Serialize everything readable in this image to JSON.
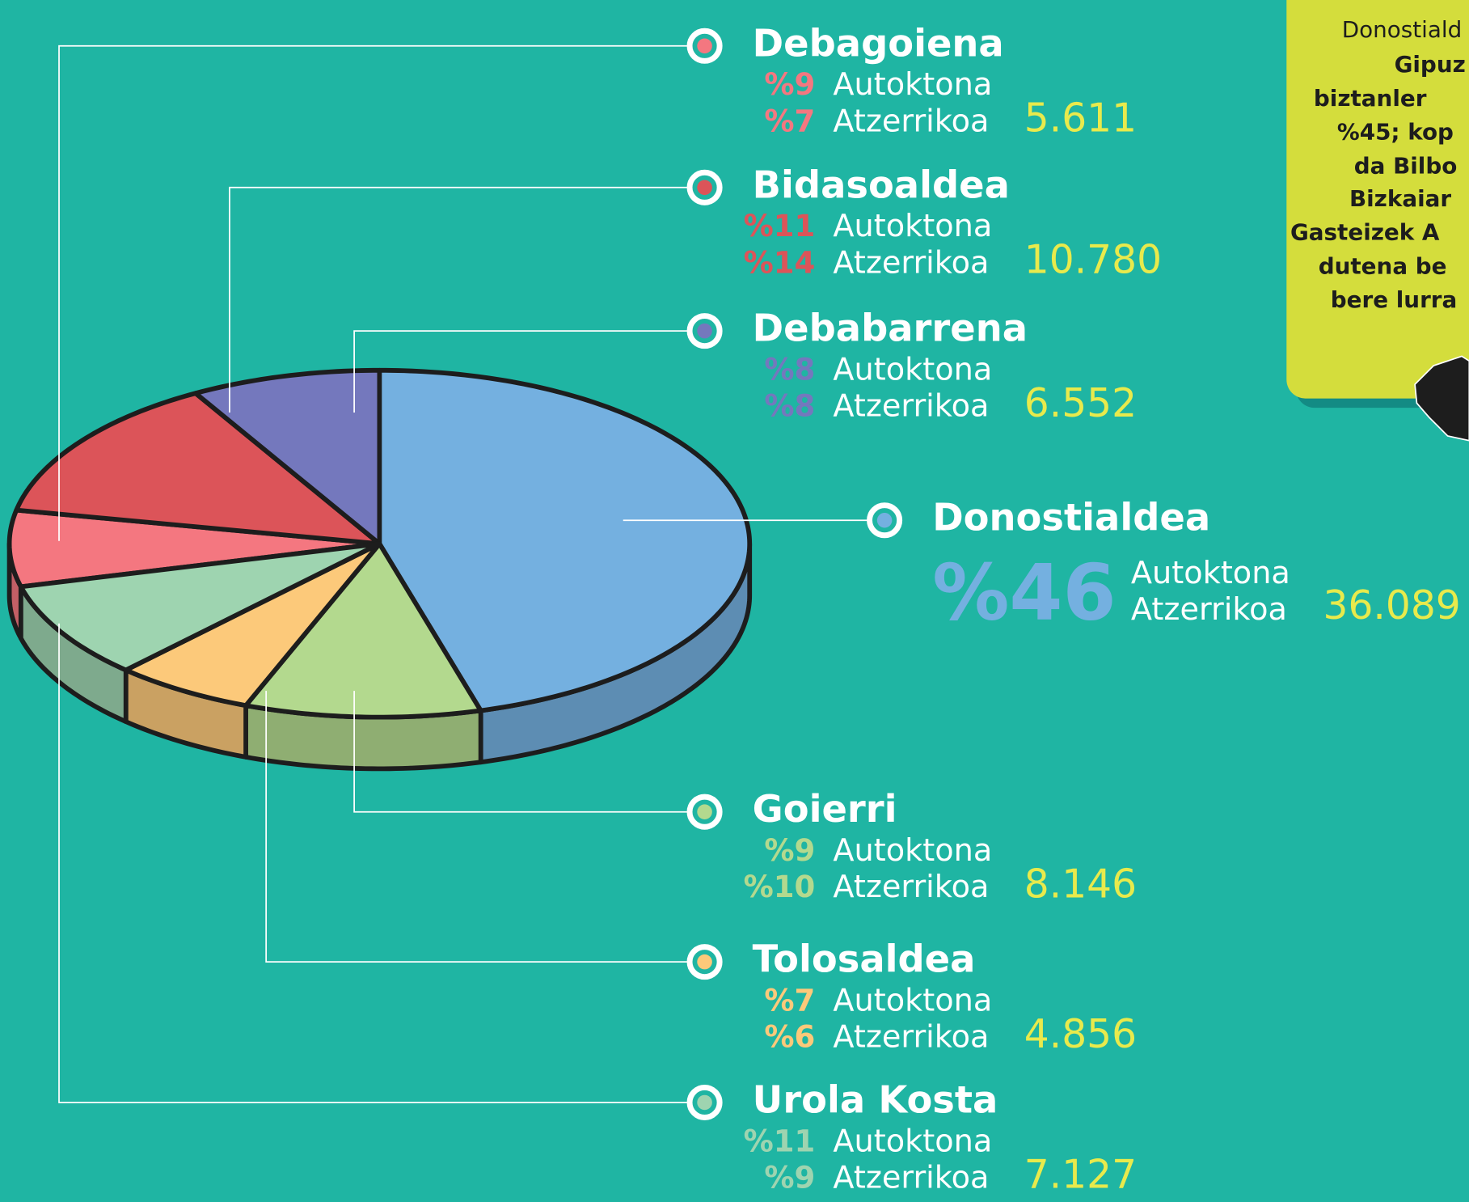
{
  "chart_data": {
    "type": "pie",
    "categories": [
      "Debagoiena",
      "Bidasoaldea",
      "Debabarrena",
      "Donostialdea",
      "Goierri",
      "Tolosaldea",
      "Urola Kosta"
    ],
    "values": [
      5611,
      10780,
      6552,
      36089,
      8146,
      4856,
      7127
    ],
    "value_labels": [
      "5.611",
      "10.780",
      "6.552",
      "36.089",
      "8.146",
      "4.856",
      "7.127"
    ],
    "colors": [
      "#f47780",
      "#dc5459",
      "#7478bd",
      "#74b0e0",
      "#b3d98e",
      "#fcc97a",
      "#9ed4b0"
    ],
    "autoktona": {
      "name": "Autoktona",
      "values": [
        9,
        11,
        8,
        46,
        9,
        7,
        11
      ],
      "value_labels": [
        "%9",
        "%11",
        "%8",
        "%46",
        "%9",
        "%7",
        "%11"
      ]
    },
    "atzerrikoa": {
      "name": "Atzerrikoa",
      "values": [
        7,
        14,
        8,
        null,
        10,
        6,
        9
      ],
      "value_labels": [
        "%7",
        "%14",
        "%8",
        null,
        "%10",
        "%6",
        "%9"
      ]
    },
    "note": [
      "Donostiald",
      "Gipuz",
      "biztanler",
      "%45; kop",
      "da Bilbo",
      "Bizkaiar",
      "Gasteizek A",
      "dutena be",
      "bere lurra"
    ]
  }
}
